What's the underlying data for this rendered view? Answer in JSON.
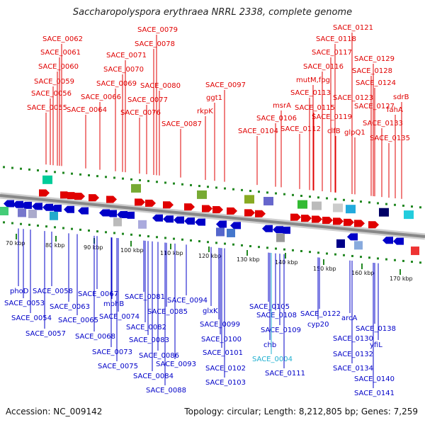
{
  "title": "Saccharopolyspora erythraea NRRL 2338, complete genome",
  "accession": "Accession: NC_009142",
  "summary": "Topology: circular; Length: 8,212,805 bp; Genes: 7,259",
  "kbp_ticks": [
    "70 kbp",
    "80 kbp",
    "90 kbp",
    "100 kbp",
    "110 kbp",
    "120 kbp",
    "130 kbp",
    "140 kbp",
    "150 kbp",
    "160 kbp",
    "170 kbp"
  ],
  "forward_genes": [
    {
      "label": "SACE_0055"
    },
    {
      "label": "SACE_0056"
    },
    {
      "label": "SACE_0059"
    },
    {
      "label": "SACE_0060"
    },
    {
      "label": "SACE_0061"
    },
    {
      "label": "SACE_0062"
    },
    {
      "label": "SACE_0064"
    },
    {
      "label": "SACE_0066"
    },
    {
      "label": "SACE_0069"
    },
    {
      "label": "SACE_0070"
    },
    {
      "label": "SACE_0071"
    },
    {
      "label": "SACE_0076"
    },
    {
      "label": "SACE_0077"
    },
    {
      "label": "SACE_0078"
    },
    {
      "label": "SACE_0079"
    },
    {
      "label": "SACE_0080"
    },
    {
      "label": "SACE_0087"
    },
    {
      "label": "rkpK"
    },
    {
      "label": "ggt1"
    },
    {
      "label": "SACE_0097"
    },
    {
      "label": "SACE_0104"
    },
    {
      "label": "SACE_0106"
    },
    {
      "label": "msrA"
    },
    {
      "label": "SACE_0112"
    },
    {
      "label": "SACE_0113"
    },
    {
      "label": "SACE_0115"
    },
    {
      "label": "mutM,fpg"
    },
    {
      "label": "SACE_0116"
    },
    {
      "label": "SACE_0117"
    },
    {
      "label": "SACE_0118"
    },
    {
      "label": "SACE_0119"
    },
    {
      "label": "SACE_0121"
    },
    {
      "label": "clfB"
    },
    {
      "label": "SACE_0123"
    },
    {
      "label": "glpQ1"
    },
    {
      "label": "SACE_0124"
    },
    {
      "label": "SACE_0127"
    },
    {
      "label": "SACE_0128"
    },
    {
      "label": "SACE_0129"
    },
    {
      "label": "SACE_0133"
    },
    {
      "label": "SACE_0135"
    },
    {
      "label": "fahA"
    },
    {
      "label": "sdrB"
    }
  ],
  "reverse_genes": [
    {
      "label": "phoD"
    },
    {
      "label": "SACE_0053"
    },
    {
      "label": "SACE_0054"
    },
    {
      "label": "SACE_0057"
    },
    {
      "label": "SACE_0058"
    },
    {
      "label": "SACE_0063"
    },
    {
      "label": "SACE_0065"
    },
    {
      "label": "SACE_0067"
    },
    {
      "label": "mphB"
    },
    {
      "label": "SACE_0068"
    },
    {
      "label": "SACE_0073"
    },
    {
      "label": "SACE_0074"
    },
    {
      "label": "SACE_0075"
    },
    {
      "label": "SACE_0081"
    },
    {
      "label": "SACE_0082"
    },
    {
      "label": "SACE_0083"
    },
    {
      "label": "SACE_0084"
    },
    {
      "label": "SACE_0085"
    },
    {
      "label": "SACE_0086"
    },
    {
      "label": "SACE_0088"
    },
    {
      "label": "SACE_0093"
    },
    {
      "label": "SACE_0094"
    },
    {
      "label": "glxK"
    },
    {
      "label": "SACE_0099"
    },
    {
      "label": "SACE_0100"
    },
    {
      "label": "SACE_0101"
    },
    {
      "label": "SACE_0102"
    },
    {
      "label": "SACE_0103"
    },
    {
      "label": "SACE_0105"
    },
    {
      "label": "SACE_0108"
    },
    {
      "label": "SACE_0109"
    },
    {
      "label": "chb"
    },
    {
      "label": "SACE_0004",
      "highlight": true
    },
    {
      "label": "SACE_0111"
    },
    {
      "label": "SACE_0122"
    },
    {
      "label": "cyp20"
    },
    {
      "label": "arcA"
    },
    {
      "label": "SACE_0130"
    },
    {
      "label": "SACE_0132"
    },
    {
      "label": "SACE_0134"
    },
    {
      "label": "SACE_0138"
    },
    {
      "label": "yfiL"
    },
    {
      "label": "SACE_0140"
    },
    {
      "label": "SACE_0141"
    }
  ],
  "colors": {
    "forward": "#e00000",
    "reverse": "#0000c8",
    "highlight": "#20b0d0",
    "backbone": "#888888",
    "tick": "#228822"
  }
}
